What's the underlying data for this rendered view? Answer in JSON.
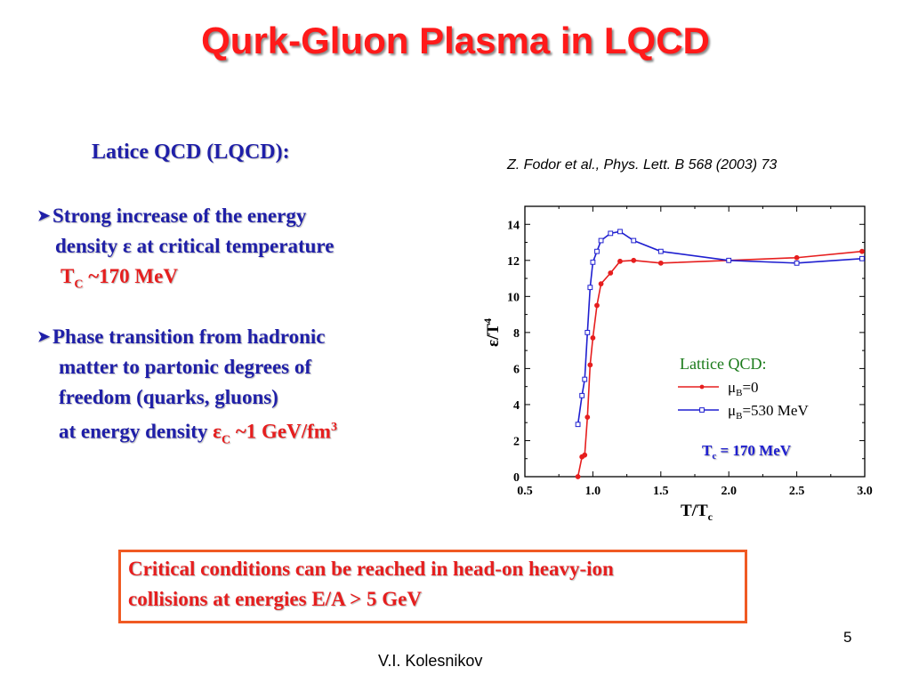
{
  "slide": {
    "title": "Qurk-Gluon Plasma in LQCD",
    "subheading": "Latice QCD (LQCD):",
    "bullet1": {
      "line1": "Strong increase of the energy",
      "line2": "density ε at critical temperature",
      "tc_symbol": "T",
      "tc_sub": "C",
      "tc_value": " ~170 MeV"
    },
    "bullet2": {
      "line1": "Phase transition from hadronic",
      "line2": "matter to partonic degrees of",
      "line3": "freedom (quarks, gluons)",
      "line4_prefix": "at  energy density ",
      "eps_symbol": "ε",
      "eps_sub": "C",
      "eps_value": " ~1 GeV/fm",
      "eps_unit_sup": "3"
    },
    "citation": "Z. Fodor et al., Phys. Lett. B 568 (2003) 73",
    "box": {
      "line1": "Critical conditions can be reached in head-on heavy-ion",
      "line2": " collisions at energies  E/A > 5 GeV"
    },
    "page_number": "5",
    "author": "V.I. Kolesnikov",
    "colors": {
      "title": "#ff1a1a",
      "text_blue": "#1f1fa8",
      "text_red": "#e61e1e",
      "box_border": "#f05a23",
      "legend_green": "#1a7a1a"
    }
  },
  "chart_data": {
    "type": "line",
    "xlabel_main": "T/T",
    "xlabel_sub": "c",
    "ylabel_main": "ε/T",
    "ylabel_sup": "4",
    "xlim": [
      0.5,
      3.0
    ],
    "ylim": [
      0,
      15
    ],
    "xticks": [
      "0.5",
      "1.0",
      "1.5",
      "2.0",
      "2.5",
      "3.0"
    ],
    "yticks": [
      "0",
      "2",
      "4",
      "6",
      "8",
      "10",
      "12",
      "14"
    ],
    "legend_title": "Lattice QCD:",
    "annotation_main": "T",
    "annotation_sub": "c",
    "annotation_value": " = 170 MeV",
    "series": [
      {
        "name_main": "μ",
        "name_sub": "B",
        "name_value": "=0",
        "color": "#e61e1e",
        "marker": "circle",
        "x": [
          0.89,
          0.92,
          0.94,
          0.96,
          0.98,
          1.0,
          1.03,
          1.06,
          1.13,
          1.2,
          1.3,
          1.5,
          2.0,
          2.5,
          2.98
        ],
        "y": [
          0.0,
          1.1,
          1.2,
          3.3,
          6.2,
          7.7,
          9.5,
          10.7,
          11.3,
          11.95,
          12.0,
          11.85,
          12.0,
          12.15,
          12.5
        ]
      },
      {
        "name_main": "μ",
        "name_sub": "B",
        "name_value": "=530 MeV",
        "color": "#1f1fd0",
        "marker": "square",
        "x": [
          0.89,
          0.92,
          0.94,
          0.96,
          0.98,
          1.0,
          1.03,
          1.06,
          1.13,
          1.2,
          1.3,
          1.5,
          2.0,
          2.5,
          2.98
        ],
        "y": [
          2.9,
          4.5,
          5.4,
          8.0,
          10.5,
          11.9,
          12.5,
          13.1,
          13.5,
          13.6,
          13.1,
          12.5,
          12.0,
          11.85,
          12.1
        ]
      }
    ]
  }
}
